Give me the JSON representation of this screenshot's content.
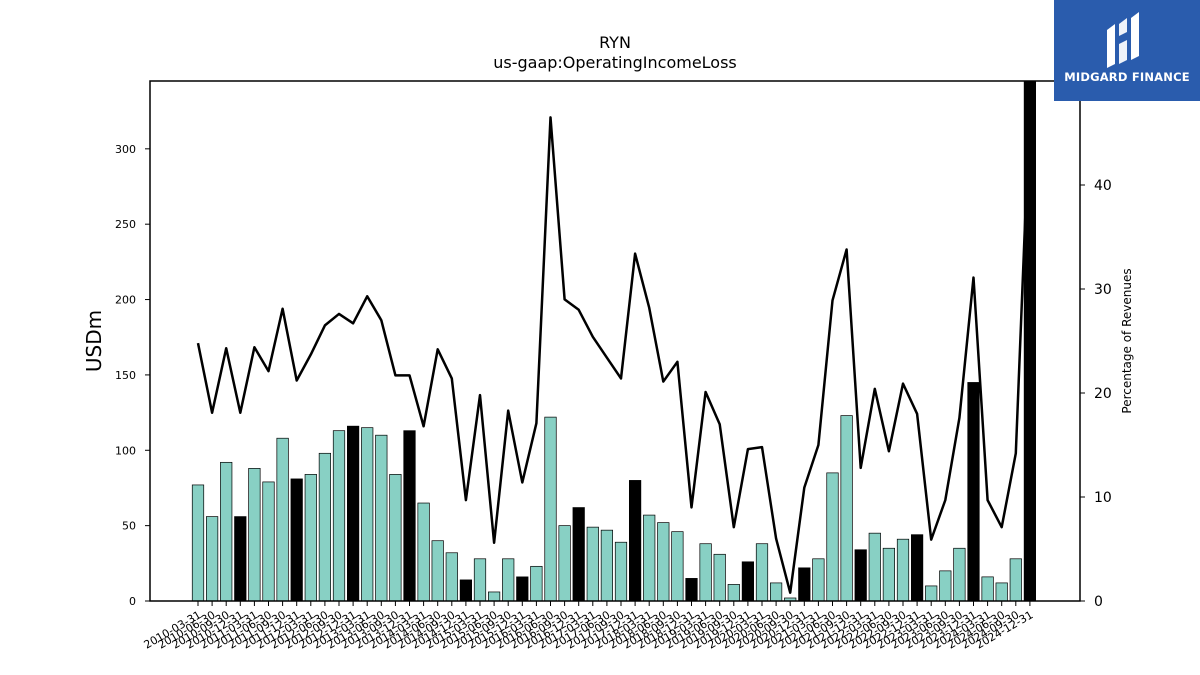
{
  "logo": {
    "text": "MIDGARD FINANCE"
  },
  "colors": {
    "bar_normal": "#88d0c4",
    "bar_highlight": "#000000",
    "line": "#000000",
    "logo_bg": "#2a5cad"
  },
  "chart_data": {
    "type": "bar",
    "title": "RYN",
    "subtitle": "us-gaap:OperatingIncomeLoss",
    "ylabel": "USDm",
    "y2label": "Percentage of Revenues",
    "ylim": [
      0,
      345
    ],
    "y2lim": [
      0,
      50
    ],
    "yticks": [
      0,
      50,
      100,
      150,
      200,
      250,
      300
    ],
    "y2ticks": [
      0,
      10,
      20,
      30,
      40
    ],
    "categories": [
      "2010-03-31",
      "2010-06-30",
      "2010-09-30",
      "2010-12-31",
      "2011-03-31",
      "2011-06-30",
      "2011-09-30",
      "2011-12-31",
      "2012-03-31",
      "2012-06-30",
      "2012-09-30",
      "2012-12-31",
      "2013-03-31",
      "2013-06-30",
      "2013-09-30",
      "2013-12-31",
      "2014-03-31",
      "2014-06-30",
      "2014-09-30",
      "2014-12-31",
      "2015-03-31",
      "2015-06-30",
      "2015-09-30",
      "2015-12-31",
      "2016-03-31",
      "2016-06-30",
      "2016-09-30",
      "2016-12-31",
      "2017-03-31",
      "2017-06-30",
      "2017-09-30",
      "2017-12-31",
      "2018-03-31",
      "2018-06-30",
      "2018-09-30",
      "2018-12-31",
      "2019-03-31",
      "2019-06-30",
      "2019-09-30",
      "2019-12-31",
      "2020-03-31",
      "2020-06-30",
      "2020-09-30",
      "2020-12-31",
      "2021-03-31",
      "2021-06-30",
      "2021-09-30",
      "2021-12-31",
      "2022-03-31",
      "2022-06-30",
      "2022-09-30",
      "2022-12-31",
      "2023-03-31",
      "2023-06-30",
      "2023-09-30",
      "2023-12-31",
      "2024-03-31",
      "2024-06-30",
      "2024-09-30",
      "2024-12-31"
    ],
    "series": [
      {
        "type": "bar",
        "values": [
          77,
          56,
          92,
          56,
          88,
          79,
          108,
          81,
          84,
          98,
          113,
          116,
          115,
          110,
          84,
          113,
          65,
          40,
          32,
          14,
          28,
          6,
          28,
          16,
          23,
          122,
          50,
          62,
          49,
          47,
          39,
          80,
          57,
          52,
          46,
          15,
          38,
          31,
          11,
          26,
          38,
          12,
          2,
          22,
          28,
          85,
          123,
          34,
          45,
          35,
          41,
          44,
          10,
          20,
          35,
          145,
          16,
          12,
          28,
          345
        ],
        "highlight": [
          false,
          false,
          false,
          true,
          false,
          false,
          false,
          true,
          false,
          false,
          false,
          true,
          false,
          false,
          false,
          true,
          false,
          false,
          false,
          true,
          false,
          false,
          false,
          true,
          false,
          false,
          false,
          true,
          false,
          false,
          false,
          true,
          false,
          false,
          false,
          true,
          false,
          false,
          false,
          true,
          false,
          false,
          false,
          true,
          false,
          false,
          false,
          true,
          false,
          false,
          false,
          true,
          false,
          false,
          false,
          true,
          false,
          false,
          false,
          true
        ]
      },
      {
        "type": "line",
        "axis": "right",
        "values": [
          24.8,
          18.1,
          24.3,
          18.1,
          24.4,
          22.1,
          28.1,
          21.2,
          23.7,
          26.5,
          27.6,
          26.7,
          29.3,
          27.0,
          21.7,
          21.7,
          16.8,
          24.2,
          21.4,
          9.7,
          19.8,
          5.6,
          18.3,
          11.4,
          17.1,
          46.5,
          29.0,
          28.0,
          25.4,
          23.4,
          21.4,
          33.4,
          28.2,
          21.1,
          23.0,
          9.0,
          20.1,
          17.0,
          7.1,
          14.6,
          14.8,
          6.0,
          0.8,
          10.9,
          15.0,
          28.9,
          33.8,
          12.8,
          20.4,
          14.4,
          20.9,
          18.0,
          5.9,
          9.7,
          17.6,
          31.1,
          9.7,
          7.1,
          14.2,
          48.0
        ]
      }
    ],
    "grid": false,
    "legend": "none"
  }
}
